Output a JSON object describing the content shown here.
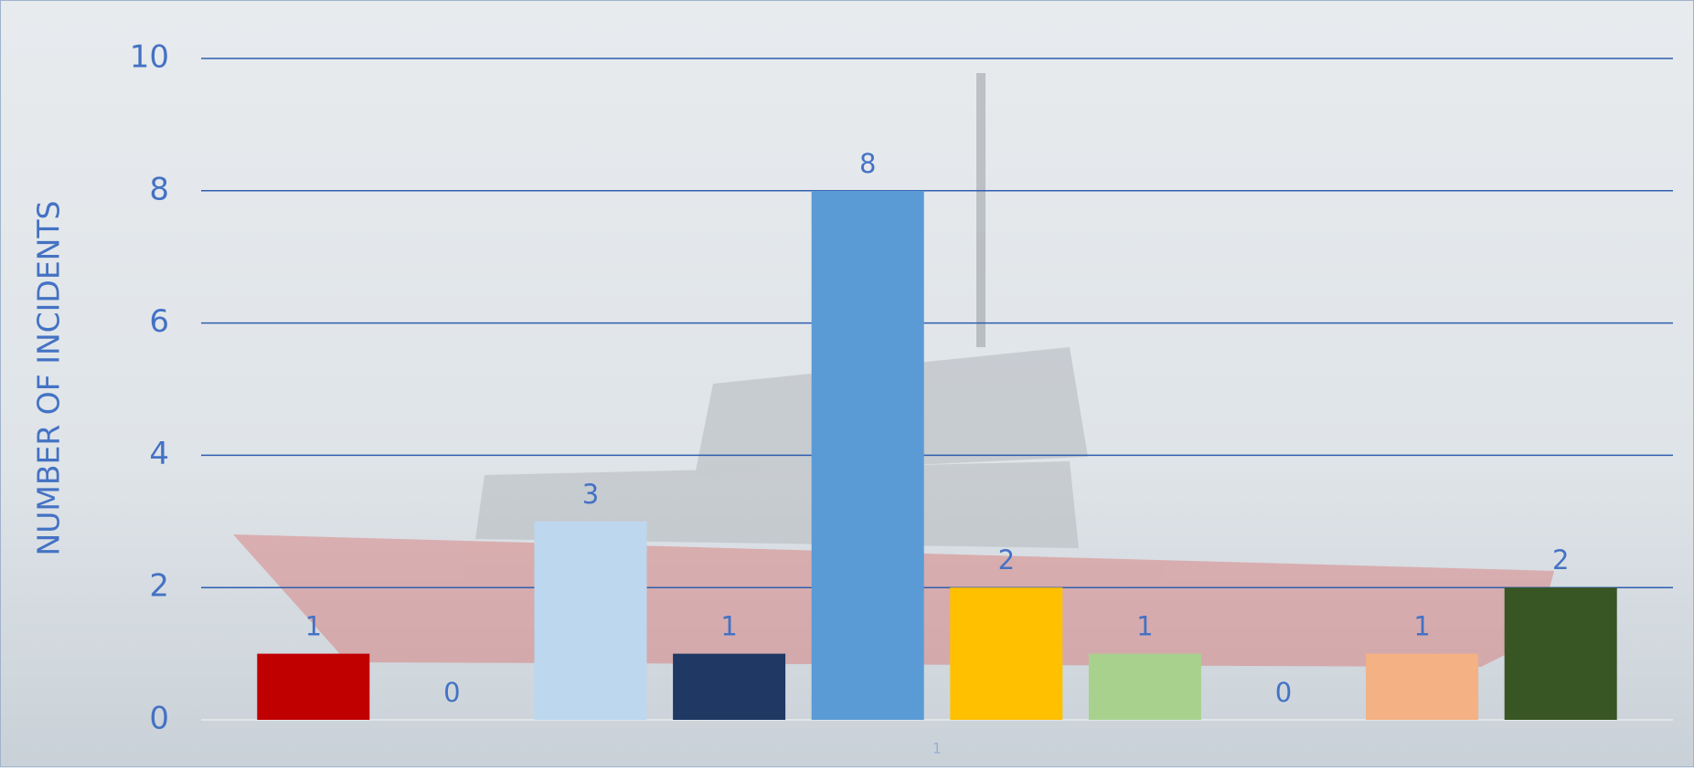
{
  "chart_data": {
    "type": "bar",
    "y_label": "NUMBER OF INCIDENTS",
    "categories": [
      "1"
    ],
    "series": [
      {
        "color": "#c00000",
        "values": [
          1
        ]
      },
      {
        "color": "#f4b183",
        "values": [
          0
        ]
      },
      {
        "color": "#bdd7ee",
        "values": [
          3
        ]
      },
      {
        "color": "#1f3864",
        "values": [
          1
        ]
      },
      {
        "color": "#5b9bd5",
        "values": [
          8
        ]
      },
      {
        "color": "#ffc000",
        "values": [
          2
        ]
      },
      {
        "color": "#a9d18e",
        "values": [
          1
        ]
      },
      {
        "color": "#7f7f7f",
        "values": [
          0
        ]
      },
      {
        "color": "#f4b183",
        "values": [
          1
        ]
      },
      {
        "color": "#375623",
        "values": [
          2
        ]
      }
    ],
    "ylim": [
      0,
      10
    ],
    "yticks": [
      0,
      2,
      4,
      6,
      8,
      10
    ],
    "grid": true
  }
}
